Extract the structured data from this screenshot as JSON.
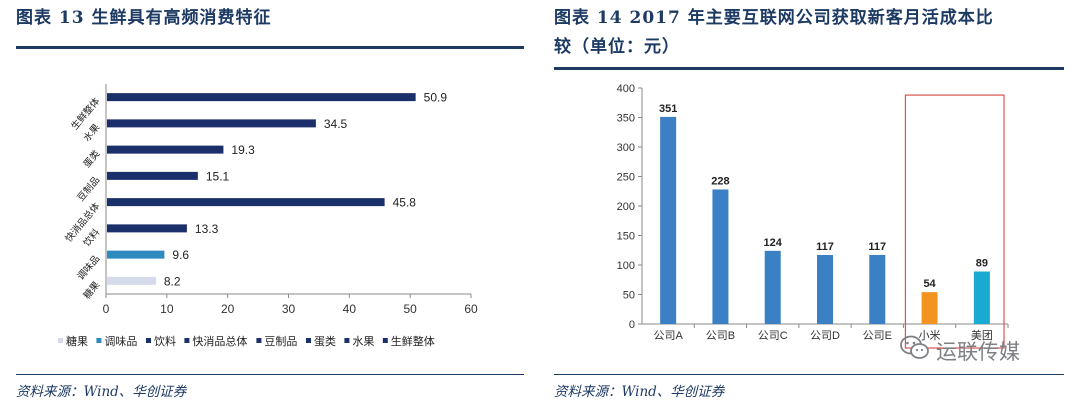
{
  "left": {
    "title": "图表 13   生鲜具有高频消费特征",
    "source": "资料来源：Wind、华创证券",
    "chart_data": {
      "type": "bar",
      "orientation": "horizontal",
      "categories": [
        "生鲜整体",
        "水果",
        "蛋类",
        "豆制品",
        "快消品总体",
        "饮料",
        "调味品",
        "糖果"
      ],
      "values": [
        50.9,
        34.5,
        19.3,
        15.1,
        45.8,
        13.3,
        9.6,
        8.2
      ],
      "colors": [
        "#1b2f6b",
        "#1b2f6b",
        "#1b2f6b",
        "#1b2f6b",
        "#1b2f6b",
        "#1b2f6b",
        "#2e8bc0",
        "#d5dbea"
      ],
      "xticks": [
        0,
        10,
        20,
        30,
        40,
        50,
        60
      ],
      "xlim": [
        0,
        60
      ],
      "legend": [
        "糖果",
        "调味品",
        "饮料",
        "快消品总体",
        "豆制品",
        "蛋类",
        "水果",
        "生鲜整体"
      ],
      "legend_colors": [
        "#d5dbea",
        "#2e8bc0",
        "#1b2f6b",
        "#1b2f6b",
        "#1b2f6b",
        "#1b2f6b",
        "#1b2f6b",
        "#1b2f6b"
      ],
      "legend_placement": "bottom",
      "grid": false
    }
  },
  "right": {
    "title_line1": "图表 14   2017 年主要互联网公司获取新客月活成本比",
    "title_line2": "较（单位：元）",
    "source": "资料来源：Wind、华创证券",
    "chart_data": {
      "type": "bar",
      "categories": [
        "公司A",
        "公司B",
        "公司C",
        "公司D",
        "公司E",
        "小米",
        "美团"
      ],
      "values": [
        351,
        228,
        124,
        117,
        117,
        54,
        89
      ],
      "colors": [
        "#3b7fc4",
        "#3b7fc4",
        "#3b7fc4",
        "#3b7fc4",
        "#3b7fc4",
        "#f39420",
        "#1aa9d2"
      ],
      "yticks": [
        0,
        50,
        100,
        150,
        200,
        250,
        300,
        350,
        400
      ],
      "ylim": [
        0,
        400
      ],
      "highlight_box": [
        "小米",
        "美团"
      ],
      "highlight_color": "#d9534f",
      "grid": false
    }
  },
  "watermark": {
    "text": "运联传媒",
    "icon": "wechat-icon"
  }
}
